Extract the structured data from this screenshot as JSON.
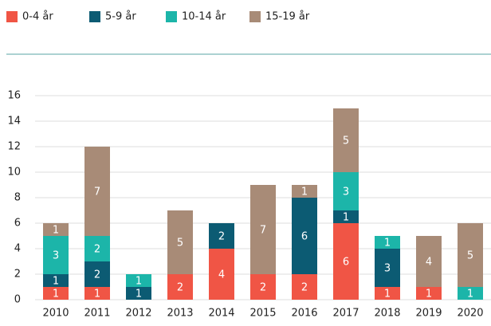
{
  "chart_data": {
    "type": "stacked_bar",
    "categories": [
      "2010",
      "2011",
      "2012",
      "2013",
      "2014",
      "2015",
      "2016",
      "2017",
      "2018",
      "2019",
      "2020"
    ],
    "series": [
      {
        "name": "0-4 år",
        "color": "#f05545",
        "values": [
          1,
          1,
          0,
          2,
          4,
          2,
          2,
          6,
          1,
          1,
          0
        ]
      },
      {
        "name": "5-9 år",
        "color": "#0c5b73",
        "values": [
          1,
          2,
          1,
          0,
          2,
          0,
          6,
          1,
          3,
          0,
          0
        ]
      },
      {
        "name": "10-14 år",
        "color": "#1cb5a9",
        "values": [
          3,
          2,
          1,
          0,
          0,
          0,
          0,
          3,
          1,
          0,
          1
        ]
      },
      {
        "name": "15-19 år",
        "color": "#a88b77",
        "values": [
          1,
          7,
          0,
          5,
          0,
          7,
          1,
          5,
          0,
          4,
          5
        ]
      }
    ],
    "ylim": [
      0,
      16
    ],
    "yticks": [
      0,
      2,
      4,
      6,
      8,
      10,
      12,
      14,
      16
    ],
    "grid": true,
    "legend": "top"
  }
}
